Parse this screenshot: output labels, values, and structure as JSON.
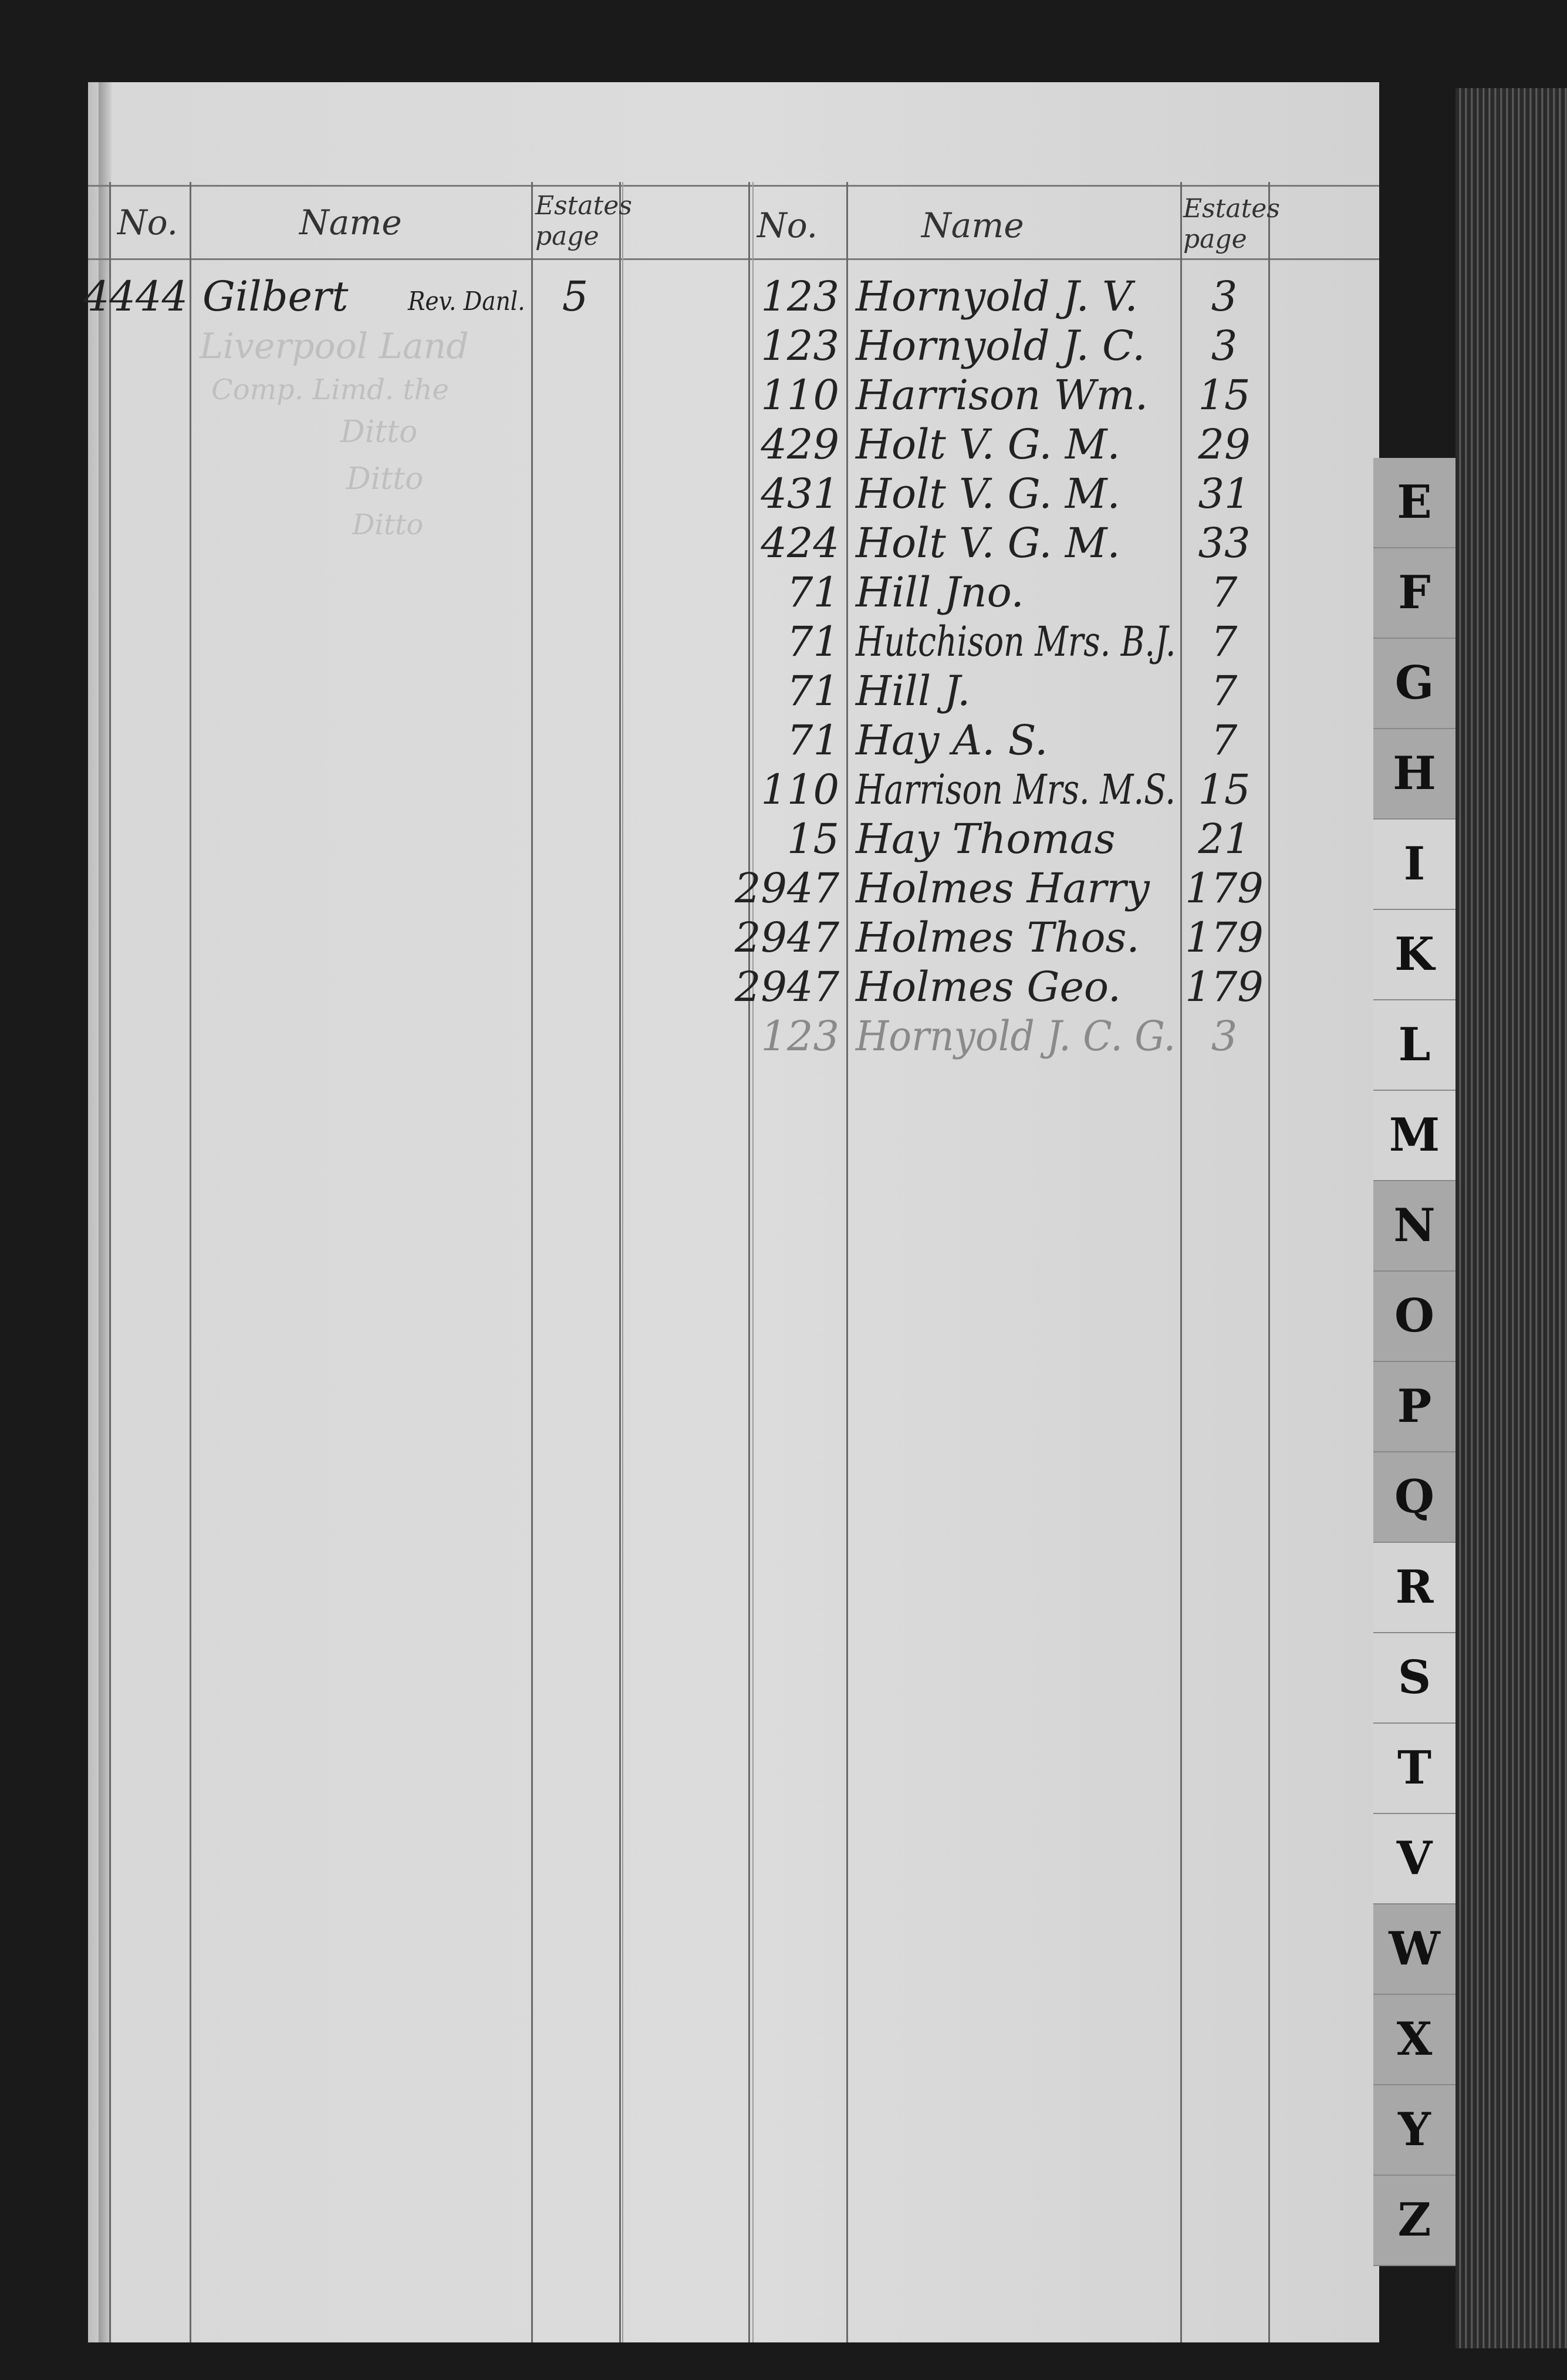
{
  "left_page": {
    "headers": {
      "no": "No.",
      "name": "Name",
      "estates_page": "Estates page"
    },
    "entries": [
      {
        "no": "4444",
        "name": "Gilbert",
        "suffix": "Rev. Danl.",
        "page": "5"
      }
    ],
    "bleed_through": [
      "Liverpool Land",
      "Comp. Limd. the",
      "Ditto",
      "Ditto",
      "Ditto"
    ]
  },
  "right_page": {
    "headers": {
      "no": "No.",
      "name": "Name",
      "estates_page": "Estates page"
    },
    "entries": [
      {
        "no": "123",
        "name": "Hornyold J. V.",
        "page": "3"
      },
      {
        "no": "123",
        "name": "Hornyold J. C.",
        "page": "3"
      },
      {
        "no": "110",
        "name": "Harrison Wm.",
        "page": "15"
      },
      {
        "no": "429",
        "name": "Holt V. G. M.",
        "page": "29"
      },
      {
        "no": "431",
        "name": "Holt V. G. M.",
        "page": "31"
      },
      {
        "no": "424",
        "name": "Holt V. G. M.",
        "page": "33"
      },
      {
        "no": "71",
        "name": "Hill Jno.",
        "page": "7"
      },
      {
        "no": "71",
        "name": "Hutchison Mrs. B.J.",
        "page": "7"
      },
      {
        "no": "71",
        "name": "Hill J.",
        "page": "7"
      },
      {
        "no": "71",
        "name": "Hay A. S.",
        "page": "7"
      },
      {
        "no": "110",
        "name": "Harrison Mrs. M.S.",
        "page": "15"
      },
      {
        "no": "15",
        "name": "Hay Thomas",
        "page": "21"
      },
      {
        "no": "2947",
        "name": "Holmes Harry",
        "page": "179"
      },
      {
        "no": "2947",
        "name": "Holmes Thos.",
        "page": "179"
      },
      {
        "no": "2947",
        "name": "Holmes Geo.",
        "page": "179"
      },
      {
        "no": "123",
        "name": "Hornyold J. C. G.",
        "page": "3",
        "faint": true
      }
    ]
  },
  "index_tabs": [
    "E",
    "F",
    "G",
    "H",
    "I",
    "K",
    "L",
    "M",
    "N",
    "O",
    "P",
    "Q",
    "R",
    "S",
    "T",
    "V",
    "W",
    "X",
    "Y",
    "Z"
  ],
  "colors": {
    "paper": "#d8d8d8",
    "ink": "#222222",
    "background": "#1a1a1a"
  }
}
